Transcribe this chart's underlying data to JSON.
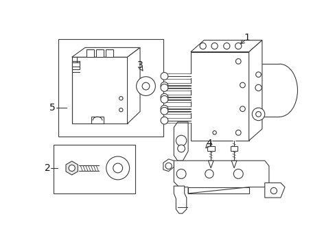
{
  "bg_color": "#ffffff",
  "line_color": "#3a3a3a",
  "lw": 0.8,
  "fig_w": 4.89,
  "fig_h": 3.6,
  "dpi": 100
}
